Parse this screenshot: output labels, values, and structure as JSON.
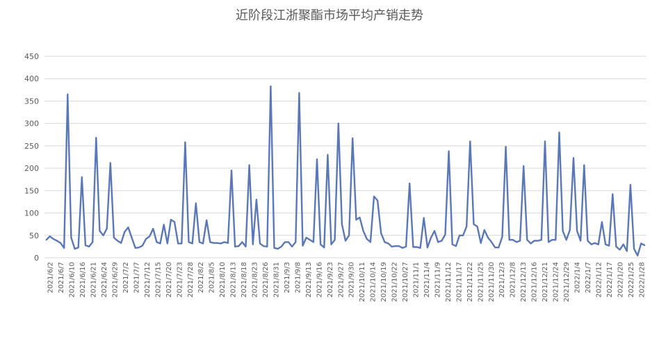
{
  "chart_data": {
    "type": "line",
    "title": "近阶段江浙聚酯市场平均产销走势",
    "xlabel": "",
    "ylabel": "",
    "ylim": [
      0,
      450
    ],
    "yticks": [
      0,
      50,
      100,
      150,
      200,
      250,
      300,
      350,
      400,
      450
    ],
    "grid": "horizontal",
    "legend": "none",
    "line_color": "#5a78b8",
    "x_tick_labels": [
      "2021/6/2",
      "2021/6/7",
      "2021/6/10",
      "2021/6/16",
      "2021/6/21",
      "2021/6/24",
      "2021/6/29",
      "2021/7/2",
      "2021/7/7",
      "2021/7/12",
      "2021/7/15",
      "2021/7/20",
      "2021/7/23",
      "2021/7/28",
      "2021/8/2",
      "2021/8/5",
      "2021/8/10",
      "2021/8/13",
      "2021/8/18",
      "2021/8/23",
      "2021/8/26",
      "2021/8/31",
      "2021/9/3",
      "2021/9/8",
      "2021/9/13",
      "2021/9/16",
      "2021/9/23",
      "2021/9/27",
      "2021/9/30",
      "2021/10/11",
      "2021/10/14",
      "2021/10/19",
      "2021/10/22",
      "2021/10/27",
      "2021/11/1",
      "2021/11/4",
      "2021/11/9",
      "2021/11/12",
      "2021/11/17",
      "2021/11/22",
      "2021/11/25",
      "2021/11/30",
      "2021/12/3",
      "2021/12/8",
      "2021/12/13",
      "2021/12/16",
      "2021/12/21",
      "2021/12/24",
      "2021/12/29",
      "2022/1/4",
      "2022/1/7",
      "2022/1/12",
      "2022/1/17",
      "2022/1/20",
      "2022/1/25",
      "2022/1/28"
    ],
    "series": [
      {
        "values": [
          40,
          48,
          42,
          38,
          33,
          22,
          365,
          45,
          20,
          23,
          180,
          28,
          25,
          35,
          268,
          60,
          50,
          65,
          212,
          45,
          38,
          33,
          58,
          68,
          45,
          22,
          23,
          27,
          42,
          48,
          65,
          35,
          32,
          74,
          32,
          85,
          80,
          32,
          32,
          258,
          35,
          32,
          122,
          35,
          32,
          84,
          35,
          33,
          33,
          32,
          35,
          33,
          195,
          25,
          26,
          35,
          25,
          207,
          30,
          130,
          32,
          26,
          25,
          383,
          22,
          20,
          25,
          35,
          35,
          25,
          35,
          368,
          27,
          45,
          40,
          35,
          220,
          30,
          23,
          230,
          30,
          40,
          300,
          75,
          38,
          50,
          267,
          85,
          90,
          60,
          42,
          35,
          137,
          128,
          55,
          35,
          32,
          25,
          26,
          26,
          22,
          25,
          166,
          24,
          24,
          22,
          89,
          23,
          45,
          60,
          35,
          38,
          52,
          238,
          30,
          26,
          50,
          50,
          70,
          260,
          75,
          70,
          33,
          62,
          45,
          35,
          23,
          23,
          47,
          248,
          40,
          40,
          35,
          38,
          205,
          40,
          32,
          38,
          38,
          40,
          260,
          35,
          40,
          40,
          280,
          60,
          40,
          62,
          223,
          60,
          38,
          207,
          38,
          30,
          33,
          30,
          80,
          30,
          27,
          142,
          25,
          18,
          30,
          15,
          163,
          20,
          5,
          32,
          28
        ]
      }
    ]
  }
}
